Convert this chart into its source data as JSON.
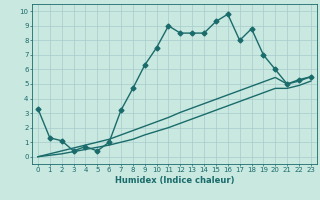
{
  "xlabel": "Humidex (Indice chaleur)",
  "xlim": [
    -0.5,
    23.5
  ],
  "ylim": [
    -0.5,
    10.5
  ],
  "background_color": "#c8e8e0",
  "grid_color": "#a8cccc",
  "line_color": "#1a6b6b",
  "line1_x": [
    0,
    1,
    2,
    3,
    4,
    5,
    6,
    7,
    8,
    9,
    10,
    11,
    12,
    13,
    14,
    15,
    16,
    17,
    18,
    19,
    20,
    21,
    22,
    23
  ],
  "line1_y": [
    3.3,
    1.3,
    1.1,
    0.4,
    0.7,
    0.4,
    1.0,
    3.2,
    4.7,
    6.3,
    7.5,
    9.0,
    8.5,
    8.5,
    8.5,
    9.3,
    9.8,
    8.0,
    8.8,
    7.0,
    6.0,
    5.0,
    5.3,
    5.5
  ],
  "line2_x": [
    0,
    1,
    2,
    3,
    4,
    5,
    6,
    7,
    8,
    9,
    10,
    11,
    12,
    13,
    14,
    15,
    16,
    17,
    18,
    19,
    20,
    21,
    22,
    23
  ],
  "line2_y": [
    0.0,
    0.2,
    0.4,
    0.6,
    0.8,
    1.0,
    1.2,
    1.5,
    1.8,
    2.1,
    2.4,
    2.7,
    3.05,
    3.35,
    3.65,
    3.95,
    4.25,
    4.55,
    4.85,
    5.15,
    5.45,
    5.0,
    5.2,
    5.5
  ],
  "line3_x": [
    0,
    1,
    2,
    3,
    4,
    5,
    6,
    7,
    8,
    9,
    10,
    11,
    12,
    13,
    14,
    15,
    16,
    17,
    18,
    19,
    20,
    21,
    22,
    23
  ],
  "line3_y": [
    0.0,
    0.1,
    0.2,
    0.35,
    0.5,
    0.65,
    0.8,
    1.0,
    1.2,
    1.5,
    1.75,
    2.0,
    2.3,
    2.6,
    2.9,
    3.2,
    3.5,
    3.8,
    4.1,
    4.4,
    4.7,
    4.7,
    4.9,
    5.2
  ],
  "marker": "D",
  "markersize": 2.5,
  "linewidth": 1.0
}
